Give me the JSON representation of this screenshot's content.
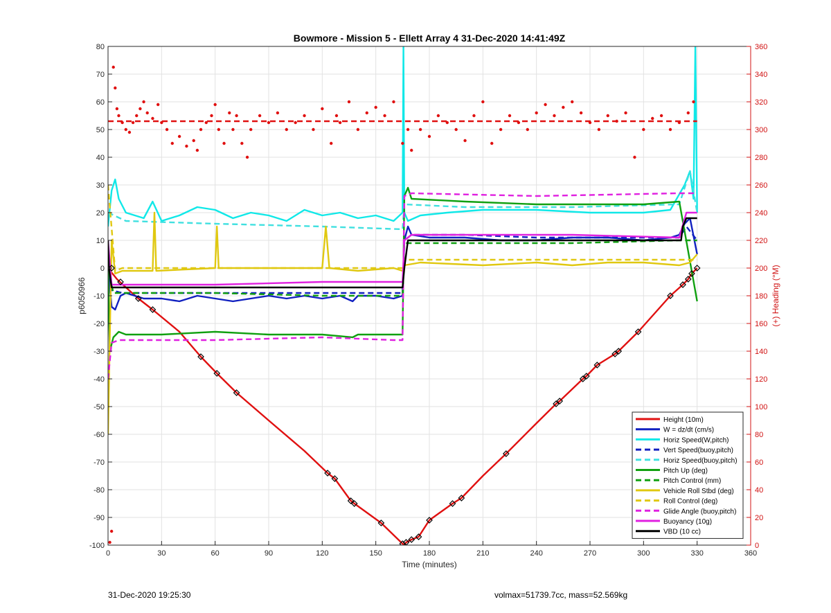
{
  "chart_data": {
    "type": "line",
    "title": "Bowmore - Mission 5 - Ellett Array 4 31-Dec-2020 14:41:49Z",
    "xlabel": "Time (minutes)",
    "ylabel": "p6050966",
    "y2label": "(+) Heading (°M)",
    "xlim": [
      0,
      360
    ],
    "ylim": [
      -100,
      80
    ],
    "y2lim": [
      0,
      360
    ],
    "xticks": [
      0,
      30,
      60,
      90,
      120,
      150,
      180,
      210,
      240,
      270,
      300,
      330,
      360
    ],
    "yticks": [
      80,
      70,
      60,
      50,
      40,
      30,
      20,
      10,
      0,
      -10,
      -20,
      -30,
      -40,
      -50,
      -60,
      -70,
      -80,
      -90,
      -100
    ],
    "y2ticks": [
      360,
      340,
      320,
      300,
      280,
      260,
      240,
      220,
      200,
      180,
      160,
      140,
      120,
      100,
      80,
      60,
      40,
      20,
      0
    ],
    "grid": true,
    "legend_position": "bottom-right",
    "series": [
      {
        "name": "Height (10m)",
        "color": "#e01010",
        "style": "solid",
        "x": [
          0,
          5,
          10,
          17,
          25,
          40,
          52,
          61,
          72,
          90,
          110,
          123,
          127,
          136,
          138,
          153,
          165,
          166,
          167,
          170,
          174,
          180,
          193,
          198,
          210,
          223,
          240,
          251,
          253,
          266,
          268,
          274,
          284,
          286,
          297,
          315,
          322,
          325,
          327,
          330
        ],
        "y": [
          0,
          -4,
          -7,
          -11,
          -15,
          -23,
          -32,
          -38,
          -45,
          -55,
          -66,
          -74,
          -76,
          -84,
          -85,
          -92,
          -99.5,
          -100,
          -99,
          -98,
          -97,
          -91,
          -85,
          -83,
          -75,
          -67,
          -56,
          -49,
          -48,
          -40,
          -39,
          -35,
          -31,
          -30,
          -23,
          -10,
          -6,
          -4,
          -2,
          0
        ]
      },
      {
        "name": "W = dz/dt (cm/s)",
        "color": "#1020c0",
        "style": "solid",
        "x": [
          0,
          1,
          2,
          4,
          7,
          10,
          20,
          30,
          40,
          50,
          60,
          70,
          80,
          90,
          100,
          110,
          120,
          130,
          137,
          140,
          150,
          160,
          165,
          166,
          168,
          170,
          180,
          200,
          220,
          240,
          260,
          280,
          300,
          315,
          320,
          323,
          326,
          330
        ],
        "y": [
          0,
          -7,
          -14,
          -15,
          -10,
          -9,
          -11,
          -11,
          -12,
          -10,
          -11,
          -12,
          -11,
          -10,
          -11,
          -10,
          -11,
          -10,
          -12,
          -10,
          -10,
          -11,
          -10,
          10,
          15,
          12,
          11,
          11,
          10,
          10,
          11,
          11,
          10,
          11,
          12,
          16,
          18,
          5
        ]
      },
      {
        "name": "Horiz Speed(W,pitch)",
        "color": "#10e8e8",
        "style": "solid",
        "x": [
          0,
          2,
          4,
          6,
          10,
          20,
          25,
          30,
          40,
          50,
          60,
          70,
          80,
          90,
          100,
          110,
          120,
          130,
          140,
          150,
          160,
          165,
          165.5,
          166,
          168,
          175,
          190,
          210,
          240,
          270,
          300,
          315,
          323,
          326,
          328,
          329,
          330
        ],
        "y": [
          15,
          28,
          32,
          25,
          20,
          18,
          24,
          17,
          19,
          22,
          21,
          18,
          20,
          19,
          17,
          21,
          19,
          20,
          18,
          19,
          17,
          20,
          80,
          20,
          17,
          19,
          20,
          21,
          21,
          20,
          20,
          21,
          30,
          35,
          25,
          80,
          20
        ]
      },
      {
        "name": "Vert Speed(buoy,pitch)",
        "color": "#1020c0",
        "style": "dashed",
        "x": [
          0,
          2,
          8,
          40,
          80,
          120,
          165,
          166,
          170,
          200,
          240,
          280,
          320,
          324,
          330
        ],
        "y": [
          0,
          -8,
          -9,
          -9,
          -9,
          -9,
          -9,
          10,
          12,
          12,
          11,
          11,
          11,
          15,
          10
        ]
      },
      {
        "name": "Horiz Speed(buoy,pitch)",
        "color": "#40e0e0",
        "style": "dashed",
        "x": [
          0,
          10,
          60,
          120,
          165,
          166,
          200,
          260,
          320,
          326,
          330
        ],
        "y": [
          20,
          17,
          16,
          15,
          14,
          23,
          22,
          22,
          23,
          35,
          20
        ]
      },
      {
        "name": "Pitch Up (deg)",
        "color": "#10a010",
        "style": "solid",
        "x": [
          0,
          1,
          3,
          6,
          10,
          30,
          60,
          90,
          120,
          137,
          140,
          165,
          166,
          168,
          170,
          200,
          240,
          270,
          300,
          320,
          330
        ],
        "y": [
          0,
          -30,
          -25,
          -23,
          -24,
          -24,
          -23,
          -24,
          -24,
          -25,
          -24,
          -24,
          26,
          29,
          25,
          24,
          23,
          23,
          23,
          24,
          -12
        ]
      },
      {
        "name": "Pitch Control (mm)",
        "color": "#10a010",
        "style": "dashed",
        "x": [
          0,
          3,
          10,
          60,
          120,
          165,
          166,
          200,
          260,
          320,
          330
        ],
        "y": [
          0,
          -9,
          -9,
          -9,
          -10,
          -10,
          9,
          9,
          9,
          10,
          10
        ]
      },
      {
        "name": "Vehicle Roll Stbd (deg)",
        "color": "#e0c810",
        "style": "solid",
        "x": [
          0,
          2,
          4,
          8,
          25,
          26,
          27,
          60,
          61,
          62,
          120,
          122,
          124,
          140,
          160,
          165,
          166,
          175,
          210,
          240,
          260,
          280,
          300,
          320,
          326,
          330
        ],
        "y": [
          -60,
          10,
          -2,
          -1,
          -1,
          20,
          -1,
          0,
          15,
          0,
          0,
          15,
          0,
          -1,
          0,
          -1,
          1,
          2,
          1,
          2,
          1,
          2,
          2,
          1,
          2,
          5
        ]
      },
      {
        "name": "Roll Control (deg)",
        "color": "#e0c810",
        "style": "dashed",
        "x": [
          0,
          4,
          8,
          60,
          120,
          165,
          166,
          240,
          300,
          330
        ],
        "y": [
          30,
          -1,
          0,
          0,
          0,
          0,
          3,
          3,
          3,
          3
        ]
      },
      {
        "name": "Glide Angle (buoy,pitch)",
        "color": "#e020e0",
        "style": "dashed",
        "x": [
          0,
          2,
          6,
          60,
          120,
          160,
          165,
          166,
          170,
          240,
          320,
          330
        ],
        "y": [
          -40,
          -27,
          -26,
          -26,
          -25,
          -26,
          -26,
          26,
          27,
          26,
          27,
          27
        ]
      },
      {
        "name": "Buoyancy (10g)",
        "color": "#e020e0",
        "style": "solid",
        "x": [
          0,
          2,
          10,
          60,
          120,
          165,
          166,
          170,
          200,
          260,
          320,
          324,
          330
        ],
        "y": [
          10,
          -6,
          -6,
          -6,
          -5,
          -5,
          10,
          12,
          12,
          12,
          11,
          20,
          20
        ]
      },
      {
        "name": "VBD (10 cc)",
        "color": "#000000",
        "style": "solid",
        "x": [
          0,
          0.5,
          2,
          165,
          166,
          168,
          170,
          321,
          322,
          324,
          330
        ],
        "y": [
          10,
          0,
          -7,
          -7,
          0,
          10,
          10,
          10,
          15,
          18,
          18
        ]
      },
      {
        "name": "Heading",
        "color": "#e01010",
        "style": "dots",
        "axis": "right",
        "x": [
          1,
          2,
          3,
          4,
          5,
          6,
          8,
          10,
          12,
          14,
          16,
          18,
          20,
          22,
          25,
          28,
          30,
          33,
          36,
          40,
          44,
          48,
          50,
          52,
          55,
          58,
          60,
          62,
          65,
          68,
          70,
          72,
          75,
          78,
          80,
          85,
          90,
          95,
          100,
          105,
          110,
          115,
          120,
          125,
          128,
          130,
          135,
          140,
          145,
          150,
          155,
          160,
          165,
          168,
          170,
          175,
          180,
          185,
          190,
          195,
          200,
          205,
          210,
          215,
          220,
          225,
          230,
          235,
          240,
          245,
          250,
          255,
          260,
          265,
          270,
          275,
          280,
          285,
          290,
          295,
          300,
          305,
          310,
          315,
          320,
          325,
          328
        ],
        "y": [
          2,
          10,
          345,
          330,
          315,
          310,
          305,
          300,
          298,
          305,
          310,
          315,
          320,
          312,
          308,
          318,
          305,
          300,
          290,
          295,
          288,
          292,
          285,
          300,
          305,
          310,
          318,
          300,
          290,
          312,
          300,
          310,
          290,
          280,
          300,
          310,
          305,
          312,
          300,
          305,
          310,
          300,
          315,
          290,
          310,
          305,
          320,
          300,
          312,
          316,
          310,
          320,
          290,
          300,
          285,
          300,
          295,
          310,
          305,
          300,
          292,
          310,
          320,
          290,
          300,
          310,
          305,
          300,
          312,
          318,
          310,
          316,
          320,
          312,
          305,
          300,
          310,
          306,
          312,
          280,
          300,
          308,
          310,
          300,
          305,
          312,
          320
        ]
      },
      {
        "name": "Heading mean",
        "color": "#e01010",
        "style": "dashed",
        "axis": "right",
        "x": [
          0,
          330
        ],
        "y": [
          306,
          306
        ]
      }
    ],
    "legend": [
      "Height (10m)",
      "W = dz/dt (cm/s)",
      "Horiz Speed(W,pitch)",
      "Vert Speed(buoy,pitch)",
      "Horiz Speed(buoy,pitch)",
      "Pitch Up (deg)",
      "Pitch Control (mm)",
      "Vehicle Roll Stbd (deg)",
      "Roll Control (deg)",
      "Glide Angle (buoy,pitch)",
      "Buoyancy (10g)",
      "VBD (10 cc)"
    ],
    "markers": {
      "x": [
        2,
        7,
        17,
        25,
        52,
        61,
        72,
        123,
        127,
        136,
        138,
        153,
        165,
        167,
        170,
        174,
        180,
        193,
        198,
        223,
        251,
        253,
        266,
        268,
        274,
        284,
        286,
        297,
        315,
        322,
        325,
        327,
        330
      ],
      "y": [
        0,
        -5,
        -11,
        -15,
        -32,
        -38,
        -45,
        -74,
        -76,
        -84,
        -85,
        -92,
        -99.5,
        -99,
        -98,
        -97,
        -91,
        -85,
        -83,
        -67,
        -49,
        -48,
        -40,
        -39,
        -35,
        -31,
        -30,
        -23,
        -10,
        -6,
        -4,
        -2,
        0
      ]
    }
  },
  "footer": {
    "left": "31-Dec-2020 19:25:30",
    "right": "volmax=51739.7cc, mass=52.569kg"
  }
}
